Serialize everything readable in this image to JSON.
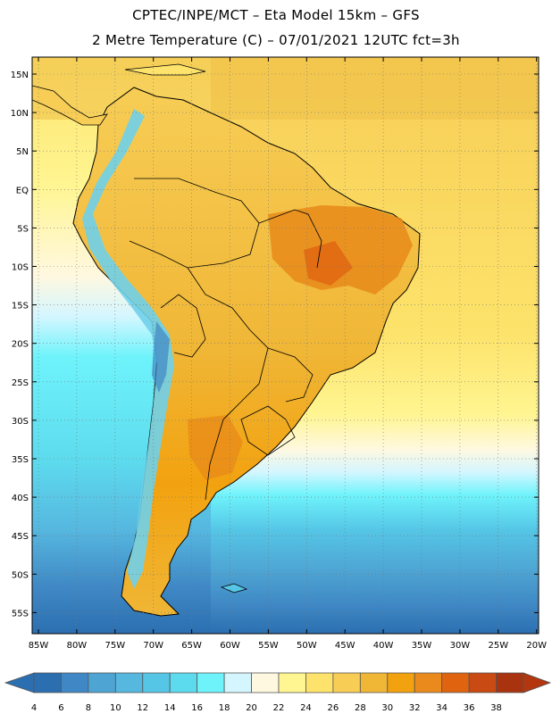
{
  "header": {
    "line1": "CPTEC/INPE/MCT –  Eta Model 15km – GFS",
    "line2": "2 Metre Temperature (C) – 07/01/2021 12UTC fct=3h"
  },
  "axes": {
    "lat_labels": [
      "15N",
      "10N",
      "5N",
      "EQ",
      "5S",
      "10S",
      "15S",
      "20S",
      "25S",
      "30S",
      "35S",
      "40S",
      "45S",
      "50S",
      "55S"
    ],
    "lon_labels": [
      "85W",
      "80W",
      "75W",
      "70W",
      "65W",
      "60W",
      "55W",
      "50W",
      "45W",
      "40W",
      "35W",
      "30W",
      "25W",
      "20W"
    ]
  },
  "colorbar": {
    "ticks": [
      "4",
      "6",
      "8",
      "10",
      "12",
      "14",
      "16",
      "18",
      "20",
      "22",
      "24",
      "26",
      "28",
      "30",
      "32",
      "34",
      "36",
      "38"
    ],
    "colors": [
      "#2b6fb0",
      "#3f88c5",
      "#4ea5d3",
      "#56b7df",
      "#55c6e6",
      "#5ddbee",
      "#6ef3fb",
      "#d4f6ff",
      "#fff8e0",
      "#fff591",
      "#fde36b",
      "#f7cd55",
      "#f0b636",
      "#f2a20f",
      "#ea8a1d",
      "#e06410",
      "#c94a12",
      "#a8330e"
    ]
  },
  "legend_colors": {
    "low_arrow": "#2b6fb0",
    "high_arrow": "#b3360e"
  }
}
